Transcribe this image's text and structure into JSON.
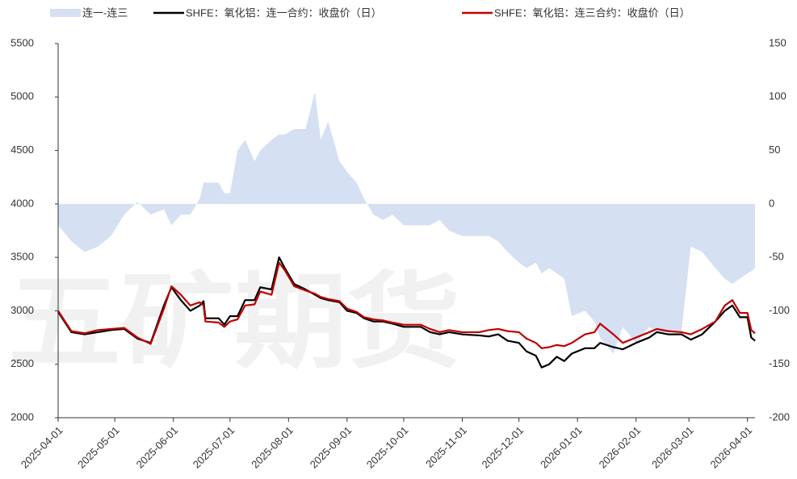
{
  "chart_data": {
    "type": "line",
    "watermark": "五矿期货",
    "x": [
      "2025-04-01",
      "2025-04-08",
      "2025-04-15",
      "2025-04-22",
      "2025-04-29",
      "2025-05-06",
      "2025-05-13",
      "2025-05-20",
      "2025-05-27",
      "2025-05-31",
      "2025-06-05",
      "2025-06-10",
      "2025-06-15",
      "2025-06-17",
      "2025-06-18",
      "2025-06-25",
      "2025-06-28",
      "2025-07-01",
      "2025-07-05",
      "2025-07-09",
      "2025-07-14",
      "2025-07-17",
      "2025-07-23",
      "2025-07-27",
      "2025-07-30",
      "2025-08-04",
      "2025-08-10",
      "2025-08-15",
      "2025-08-18",
      "2025-08-22",
      "2025-08-28",
      "2025-09-01",
      "2025-09-06",
      "2025-09-10",
      "2025-09-15",
      "2025-09-20",
      "2025-09-25",
      "2025-10-01",
      "2025-10-10",
      "2025-10-15",
      "2025-10-20",
      "2025-10-25",
      "2025-11-01",
      "2025-11-10",
      "2025-11-15",
      "2025-11-20",
      "2025-11-25",
      "2025-12-01",
      "2025-12-05",
      "2025-12-10",
      "2025-12-13",
      "2025-12-17",
      "2025-12-21",
      "2025-12-25",
      "2025-12-29",
      "2026-01-05",
      "2026-01-10",
      "2026-01-13",
      "2026-01-20",
      "2026-01-25",
      "2026-02-01",
      "2026-02-08",
      "2026-02-12",
      "2026-02-18",
      "2026-02-25",
      "2026-03-02",
      "2026-03-08",
      "2026-03-15",
      "2026-03-20",
      "2026-03-24",
      "2026-03-28",
      "2026-04-01",
      "2026-04-03",
      "2026-04-05"
    ],
    "series": [
      {
        "name": "连一-连三",
        "color": "#d6e0f3",
        "kind": "area",
        "axis": "y2",
        "values": [
          -20,
          -35,
          -45,
          -40,
          -30,
          -10,
          2,
          -10,
          -5,
          -20,
          -10,
          -10,
          5,
          20,
          20,
          20,
          10,
          10,
          50,
          60,
          40,
          50,
          60,
          65,
          65,
          70,
          70,
          105,
          60,
          77,
          40,
          30,
          20,
          5,
          -10,
          -15,
          -10,
          -20,
          -20,
          -20,
          -15,
          -25,
          -30,
          -30,
          -30,
          -35,
          -45,
          -55,
          -60,
          -55,
          -65,
          -60,
          -65,
          -70,
          -105,
          -100,
          -110,
          -125,
          -140,
          -115,
          -130,
          -115,
          -120,
          -120,
          -120,
          -40,
          -45,
          -60,
          -70,
          -75,
          -70,
          -65,
          -63,
          -60
        ]
      },
      {
        "name": "SHFE：氧化铝：连一合约：收盘价（日）",
        "color": "#000000",
        "kind": "line",
        "values": [
          2990,
          2800,
          2780,
          2800,
          2820,
          2830,
          2740,
          2700,
          3050,
          3220,
          3100,
          3000,
          3050,
          3090,
          2930,
          2930,
          2870,
          2950,
          2950,
          3100,
          3100,
          3220,
          3200,
          3500,
          3400,
          3250,
          3200,
          3150,
          3120,
          3100,
          3080,
          3000,
          2980,
          2930,
          2900,
          2900,
          2880,
          2850,
          2850,
          2800,
          2780,
          2800,
          2780,
          2770,
          2760,
          2780,
          2720,
          2700,
          2620,
          2580,
          2470,
          2500,
          2570,
          2530,
          2600,
          2650,
          2650,
          2700,
          2660,
          2640,
          2700,
          2750,
          2800,
          2780,
          2780,
          2730,
          2780,
          2900,
          3000,
          3050,
          2940,
          2940,
          2750,
          2720
        ]
      },
      {
        "name": "SHFE：氧化铝：连三合约：收盘价（日）",
        "color": "#c00000",
        "kind": "line",
        "values": [
          3000,
          2810,
          2790,
          2820,
          2830,
          2840,
          2750,
          2690,
          3020,
          3230,
          3150,
          3050,
          3080,
          3050,
          2900,
          2890,
          2850,
          2900,
          2920,
          3050,
          3060,
          3180,
          3150,
          3450,
          3380,
          3230,
          3190,
          3160,
          3130,
          3110,
          3090,
          3020,
          2990,
          2940,
          2920,
          2910,
          2890,
          2870,
          2870,
          2830,
          2800,
          2820,
          2800,
          2800,
          2820,
          2830,
          2810,
          2800,
          2740,
          2700,
          2650,
          2660,
          2680,
          2670,
          2700,
          2780,
          2800,
          2880,
          2780,
          2700,
          2750,
          2800,
          2830,
          2810,
          2800,
          2780,
          2830,
          2900,
          3050,
          3100,
          2980,
          2980,
          2820,
          2790
        ]
      }
    ],
    "xlim": [
      "2025-04-01",
      "2026-04-05"
    ],
    "xticks": [
      "2025-04-01",
      "2025-05-01",
      "2025-06-01",
      "2025-07-01",
      "2025-08-01",
      "2025-09-01",
      "2025-10-01",
      "2025-11-01",
      "2025-12-01",
      "2026-01-01",
      "2026-02-01",
      "2026-03-01",
      "2026-04-01"
    ],
    "ylim": [
      2000,
      5500
    ],
    "yticks": [
      2000,
      2500,
      3000,
      3500,
      4000,
      4500,
      5000,
      5500
    ],
    "y2lim": [
      -200,
      150
    ],
    "y2ticks": [
      -200,
      -150,
      -100,
      -50,
      0,
      50,
      100,
      150
    ]
  }
}
